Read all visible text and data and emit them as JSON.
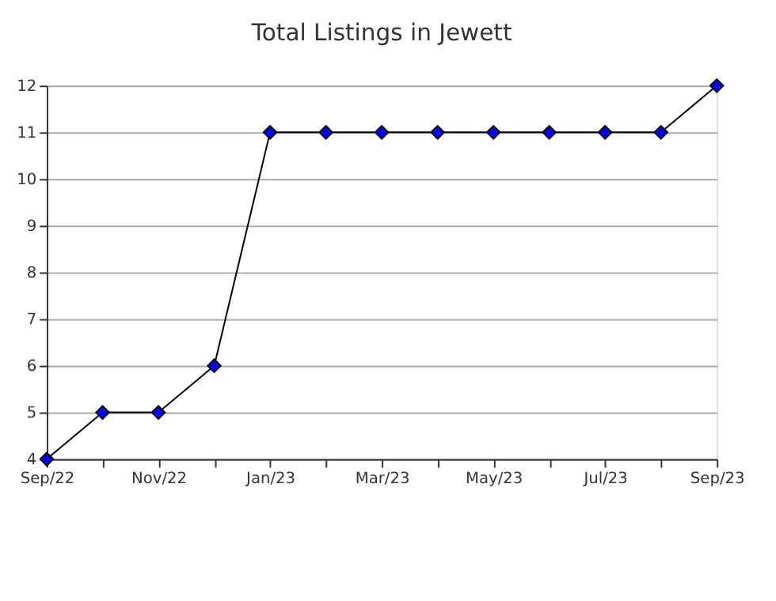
{
  "chart_data": {
    "type": "line",
    "title": "Total Listings in Jewett",
    "categories": [
      "Sep/22",
      null,
      "Nov/22",
      null,
      "Jan/23",
      null,
      "Mar/23",
      null,
      "May/23",
      null,
      "Jul/23",
      null,
      "Sep/23"
    ],
    "series": [
      {
        "color": "#0000ff",
        "values": [
          4,
          5,
          5,
          6,
          11,
          11,
          11,
          11,
          11,
          11,
          11,
          11,
          12
        ]
      }
    ],
    "ylim": [
      4,
      12
    ],
    "yticks": [
      4,
      5,
      6,
      7,
      8,
      9,
      10,
      11,
      12
    ],
    "grid": "y",
    "marker": "diamond",
    "line_style": "solid"
  }
}
